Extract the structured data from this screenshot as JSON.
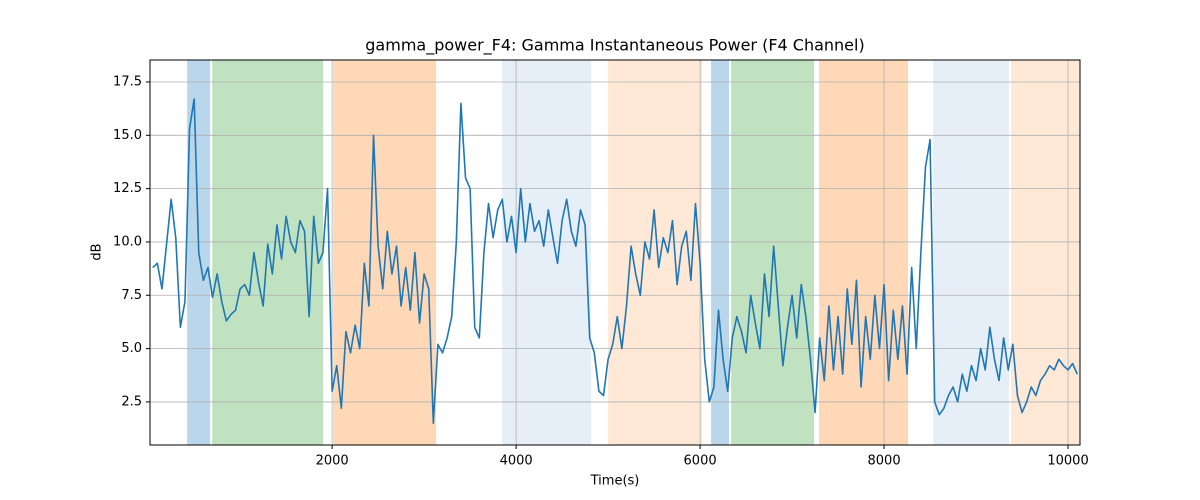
{
  "chart_data": {
    "type": "line",
    "title": "gamma_power_F4: Gamma Instantaneous Power (F4 Channel)",
    "xlabel": "Time(s)",
    "ylabel": "dB",
    "xlim": [
      20,
      10130
    ],
    "ylim": [
      0.48,
      18.53
    ],
    "xticks": [
      2000,
      4000,
      6000,
      8000,
      10000
    ],
    "yticks": [
      2.5,
      {
        "value": 5,
        "label": "5.0"
      },
      7.5,
      {
        "value": 10,
        "label": "10.0"
      },
      12.5,
      {
        "value": 15,
        "label": "15.0"
      },
      17.5
    ],
    "grid": true,
    "spans": [
      {
        "start": 424,
        "end": 674,
        "color": "#bad6ea"
      },
      {
        "start": 696,
        "end": 1902,
        "color": "#c0e2c0"
      },
      {
        "start": 2011,
        "end": 3130,
        "color": "#ffd8b7"
      },
      {
        "start": 3848,
        "end": 4815,
        "color": "#e6eef8"
      },
      {
        "start": 5000,
        "end": 6022,
        "color": "#ffe9d6"
      },
      {
        "start": 6120,
        "end": 6315,
        "color": "#bad6ea"
      },
      {
        "start": 6337,
        "end": 7239,
        "color": "#c0e2c0"
      },
      {
        "start": 7293,
        "end": 8261,
        "color": "#ffd8b7"
      },
      {
        "start": 8533,
        "end": 9359,
        "color": "#e6eef8"
      },
      {
        "start": 9380,
        "end": 10130,
        "color": "#ffe9d6"
      }
    ],
    "x": [
      50,
      100,
      150,
      200,
      250,
      300,
      350,
      400,
      450,
      500,
      550,
      600,
      650,
      700,
      750,
      800,
      850,
      900,
      950,
      1000,
      1050,
      1100,
      1150,
      1200,
      1250,
      1300,
      1350,
      1400,
      1450,
      1500,
      1550,
      1600,
      1650,
      1700,
      1750,
      1800,
      1850,
      1900,
      1950,
      2000,
      2050,
      2100,
      2150,
      2200,
      2250,
      2300,
      2350,
      2400,
      2450,
      2500,
      2550,
      2600,
      2650,
      2700,
      2750,
      2800,
      2850,
      2900,
      2950,
      3000,
      3050,
      3100,
      3150,
      3200,
      3250,
      3300,
      3350,
      3400,
      3450,
      3500,
      3550,
      3600,
      3650,
      3700,
      3750,
      3800,
      3850,
      3900,
      3950,
      4000,
      4050,
      4100,
      4150,
      4200,
      4250,
      4300,
      4350,
      4400,
      4450,
      4500,
      4550,
      4600,
      4650,
      4700,
      4750,
      4800,
      4850,
      4900,
      4950,
      5000,
      5050,
      5100,
      5150,
      5200,
      5250,
      5300,
      5350,
      5400,
      5450,
      5500,
      5550,
      5600,
      5650,
      5700,
      5750,
      5800,
      5850,
      5900,
      5950,
      6000,
      6050,
      6100,
      6150,
      6200,
      6250,
      6300,
      6350,
      6400,
      6450,
      6500,
      6550,
      6600,
      6650,
      6700,
      6750,
      6800,
      6850,
      6900,
      6950,
      7000,
      7050,
      7100,
      7150,
      7200,
      7250,
      7300,
      7350,
      7400,
      7450,
      7500,
      7550,
      7600,
      7650,
      7700,
      7750,
      7800,
      7850,
      7900,
      7950,
      8000,
      8050,
      8100,
      8150,
      8200,
      8250,
      8300,
      8350,
      8400,
      8450,
      8500,
      8550,
      8600,
      8650,
      8700,
      8750,
      8800,
      8850,
      8900,
      8950,
      9000,
      9050,
      9100,
      9150,
      9200,
      9250,
      9300,
      9350,
      9400,
      9450,
      9500,
      9550,
      9600,
      9650,
      9700,
      9750,
      9800,
      9850,
      9900,
      9950,
      10000,
      10050,
      10100
    ],
    "series": [
      {
        "name": "gamma_power_F4",
        "color": "#1f77b4",
        "values": [
          8.8,
          9.0,
          7.8,
          9.9,
          12.0,
          10.2,
          6.0,
          7.2,
          15.3,
          16.7,
          9.5,
          8.2,
          8.8,
          7.4,
          8.5,
          7.2,
          6.3,
          6.6,
          6.8,
          7.8,
          8.0,
          7.5,
          9.5,
          8.1,
          7.0,
          9.9,
          8.5,
          10.8,
          9.2,
          11.2,
          10.0,
          9.5,
          11.0,
          10.5,
          6.5,
          11.2,
          9.0,
          9.5,
          12.5,
          3.0,
          4.2,
          2.2,
          5.8,
          4.8,
          6.1,
          5.0,
          9.0,
          7.0,
          15.0,
          9.8,
          7.8,
          10.5,
          8.5,
          9.8,
          7.0,
          8.8,
          6.8,
          9.5,
          6.2,
          8.5,
          7.8,
          1.5,
          5.2,
          4.8,
          5.5,
          6.5,
          10.0,
          16.5,
          13.0,
          12.5,
          6.0,
          5.5,
          9.5,
          11.8,
          10.2,
          11.5,
          12.0,
          10.0,
          11.2,
          9.5,
          12.5,
          10.0,
          11.8,
          10.5,
          11.0,
          9.8,
          11.5,
          10.2,
          9.0,
          11.0,
          12.0,
          10.5,
          9.8,
          11.5,
          10.8,
          5.5,
          4.8,
          3.0,
          2.8,
          4.5,
          5.2,
          6.5,
          5.0,
          7.0,
          9.8,
          8.5,
          7.5,
          10.0,
          9.2,
          11.5,
          8.8,
          10.2,
          9.5,
          11.0,
          8.0,
          9.8,
          10.5,
          8.2,
          11.8,
          9.0,
          4.5,
          2.5,
          3.2,
          6.8,
          4.5,
          3.0,
          5.5,
          6.5,
          5.8,
          4.8,
          7.5,
          6.2,
          5.0,
          8.5,
          6.5,
          9.8,
          7.0,
          4.2,
          6.0,
          7.5,
          5.5,
          8.0,
          6.5,
          4.5,
          2.0,
          5.5,
          3.5,
          7.0,
          4.0,
          6.5,
          3.8,
          7.8,
          5.2,
          8.2,
          3.2,
          6.5,
          4.5,
          7.5,
          5.0,
          8.0,
          3.5,
          6.8,
          4.5,
          7.0,
          3.8,
          8.8,
          5.0,
          9.5,
          13.5,
          14.8,
          2.5,
          1.9,
          2.2,
          2.8,
          3.2,
          2.5,
          3.8,
          3.0,
          4.2,
          3.5,
          5.0,
          4.0,
          6.0,
          4.5,
          3.5,
          5.5,
          4.0,
          5.2,
          2.8,
          2.0,
          2.5,
          3.2,
          2.8,
          3.5,
          3.8,
          4.2,
          4.0,
          4.5,
          4.2,
          4.0,
          4.3,
          3.8
        ]
      }
    ]
  }
}
